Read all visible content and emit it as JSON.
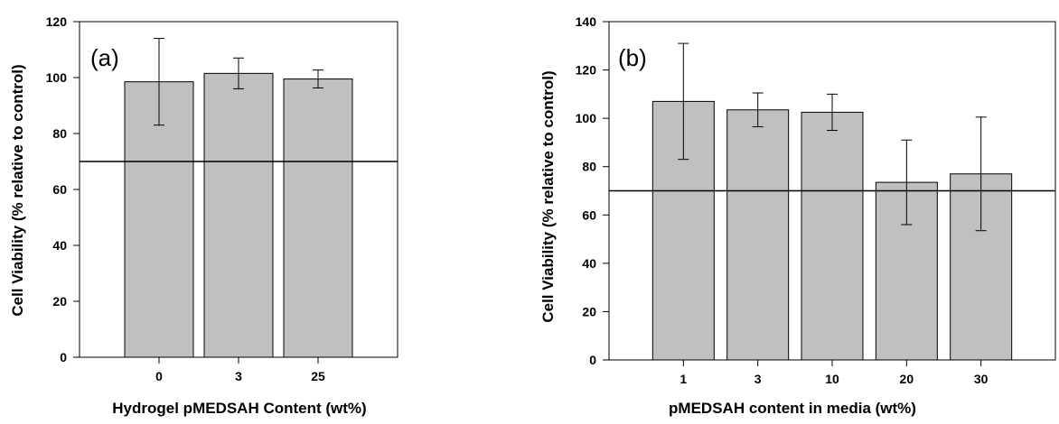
{
  "chart_data": [
    {
      "type": "bar",
      "panel_label": "(a)",
      "categories": [
        "0",
        "3",
        "25"
      ],
      "values": [
        98.5,
        101.5,
        99.5
      ],
      "errors": [
        15.5,
        5.5,
        3.2
      ],
      "reference_line": 70,
      "xlabel": "Hydrogel pMEDSAH Content (wt%)",
      "ylabel": "Cell Viability (% relative to control)",
      "ylim": [
        0,
        120
      ],
      "yticks": [
        0,
        20,
        40,
        60,
        80,
        100,
        120
      ],
      "bar_color": "#c0c0c0",
      "grid": false
    },
    {
      "type": "bar",
      "panel_label": "(b)",
      "categories": [
        "1",
        "3",
        "10",
        "20",
        "30"
      ],
      "values": [
        107,
        103.5,
        102.5,
        73.5,
        77
      ],
      "errors": [
        24,
        7,
        7.5,
        17.5,
        23.5
      ],
      "reference_line": 70,
      "xlabel": "pMEDSAH content in media (wt%)",
      "ylabel": "Cell Viability (% relative to control)",
      "ylim": [
        0,
        140
      ],
      "yticks": [
        0,
        20,
        40,
        60,
        80,
        100,
        120,
        140
      ],
      "bar_color": "#c0c0c0",
      "grid": false
    }
  ]
}
